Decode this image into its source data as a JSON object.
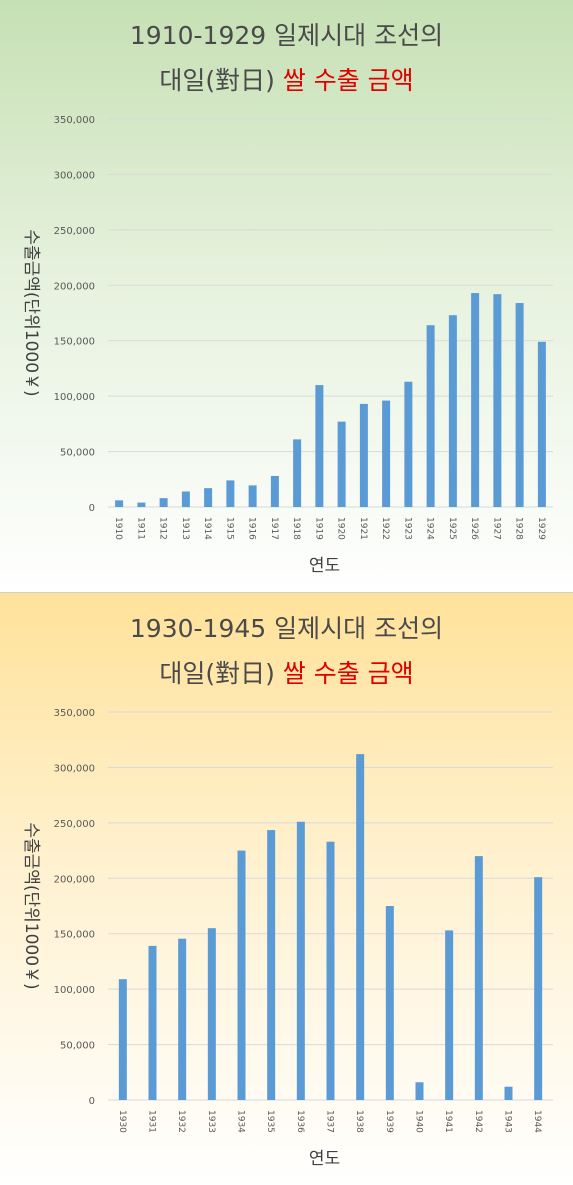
{
  "colors": {
    "bar": "#5b9bd5",
    "grid": "#d9d9d9",
    "red_title": "#e00000"
  },
  "chart_data": [
    {
      "type": "bar",
      "title_line1": "1910-1929 일제시대 조선의",
      "title_line2_a": "대일(對日) ",
      "title_line2_b": "쌀 수출 금액",
      "xlabel": "연도",
      "ylabel": "수출금액(단위1000￥)",
      "ylim": [
        0,
        350000
      ],
      "yticks": [
        "0",
        "50,000",
        "100,000",
        "150,000",
        "200,000",
        "250,000",
        "300,000",
        "350,000"
      ],
      "categories": [
        "1910",
        "1911",
        "1912",
        "1913",
        "1914",
        "1915",
        "1916",
        "1917",
        "1918",
        "1919",
        "1920",
        "1921",
        "1922",
        "1923",
        "1924",
        "1925",
        "1926",
        "1927",
        "1928",
        "1929"
      ],
      "values": [
        6000,
        4000,
        8000,
        14000,
        17000,
        24000,
        19500,
        28000,
        61000,
        110000,
        77000,
        93000,
        96000,
        113000,
        164000,
        173000,
        193000,
        192000,
        184000,
        149000
      ],
      "grid": true
    },
    {
      "type": "bar",
      "title_line1": "1930-1945 일제시대 조선의",
      "title_line2_a": "대일(對日) ",
      "title_line2_b": "쌀 수출 금액",
      "xlabel": "연도",
      "ylabel": "수출금액(단위1000￥)",
      "ylim": [
        0,
        350000
      ],
      "yticks": [
        "0",
        "50,000",
        "100,000",
        "150,000",
        "200,000",
        "250,000",
        "300,000",
        "350,000"
      ],
      "categories": [
        "1930",
        "1931",
        "1932",
        "1933",
        "1934",
        "1935",
        "1936",
        "1937",
        "1938",
        "1939",
        "1940",
        "1941",
        "1942",
        "1943",
        "1944"
      ],
      "values": [
        109000,
        139000,
        145500,
        155000,
        225000,
        243500,
        251000,
        233000,
        312000,
        175000,
        16000,
        153000,
        220000,
        12000,
        201000
      ],
      "grid": true
    }
  ]
}
